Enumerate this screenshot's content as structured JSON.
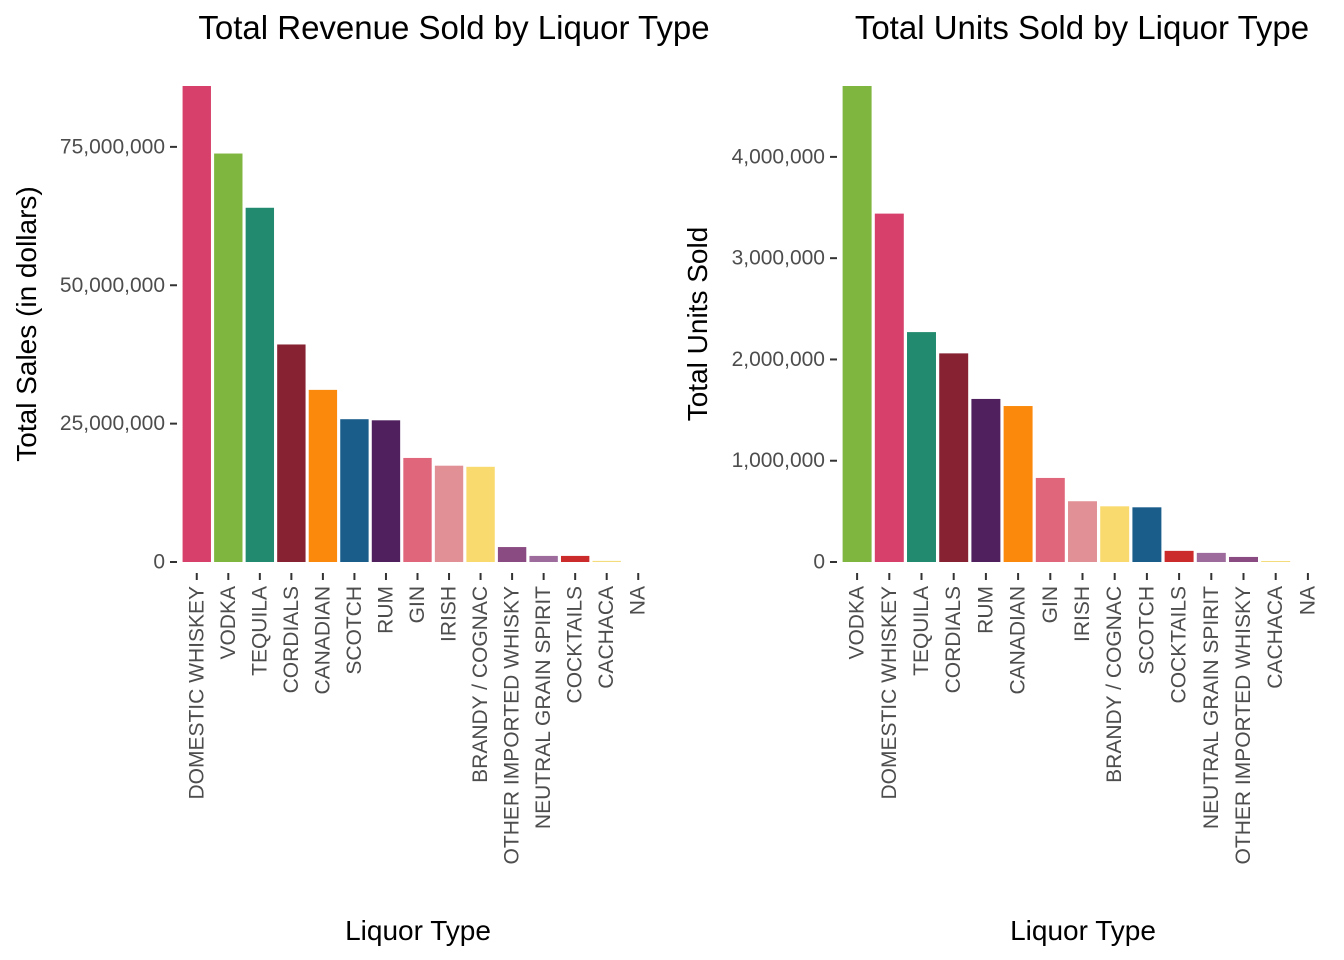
{
  "chart_data": [
    {
      "type": "bar",
      "title": "Total Revenue Sold by Liquor Type",
      "xlabel": "Liquor Type",
      "ylabel": "Total Sales (in dollars)",
      "ylim": [
        0,
        86000000
      ],
      "yticks": [
        0,
        25000000,
        50000000,
        75000000
      ],
      "ytick_labels": [
        "0",
        "25,000,000",
        "50,000,000",
        "75,000,000"
      ],
      "grid": false,
      "legend": "none",
      "categories": [
        "DOMESTIC WHISKEY",
        "VODKA",
        "TEQUILA",
        "CORDIALS",
        "CANADIAN",
        "SCOTCH",
        "RUM",
        "GIN",
        "IRISH",
        "BRANDY / COGNAC",
        "OTHER IMPORTED WHISKY",
        "NEUTRAL GRAIN SPIRIT",
        "COCKTAILS",
        "CACHACA",
        "NA"
      ],
      "values": [
        86000000,
        73800000,
        64000000,
        39300000,
        31100000,
        25800000,
        25600000,
        18800000,
        17400000,
        17200000,
        2700000,
        1100000,
        1100000,
        200000,
        0
      ],
      "colors": [
        "#D6406B",
        "#7FB640",
        "#228B6F",
        "#862232",
        "#FB8A0C",
        "#1A5D8B",
        "#4F1F5E",
        "#E0677B",
        "#E19195",
        "#F9DA6E",
        "#8A4A82",
        "#9D6B9C",
        "#CB2B2B",
        "#F4DC7C",
        "#ffffff"
      ]
    },
    {
      "type": "bar",
      "title": "Total Units Sold by Liquor Type",
      "xlabel": "Liquor Type",
      "ylabel": "Total Units Sold",
      "ylim": [
        0,
        4700000
      ],
      "yticks": [
        0,
        1000000,
        2000000,
        3000000,
        4000000
      ],
      "ytick_labels": [
        "0",
        "1,000,000",
        "2,000,000",
        "3,000,000",
        "4,000,000"
      ],
      "grid": false,
      "legend": "none",
      "categories": [
        "VODKA",
        "DOMESTIC WHISKEY",
        "TEQUILA",
        "CORDIALS",
        "RUM",
        "CANADIAN",
        "GIN",
        "IRISH",
        "BRANDY / COGNAC",
        "SCOTCH",
        "COCKTAILS",
        "NEUTRAL GRAIN SPIRIT",
        "OTHER IMPORTED WHISKY",
        "CACHACA",
        "NA"
      ],
      "values": [
        4700000,
        3440000,
        2270000,
        2060000,
        1610000,
        1540000,
        830000,
        600000,
        550000,
        540000,
        110000,
        90000,
        50000,
        10000,
        0
      ],
      "colors": [
        "#7FB640",
        "#D6406B",
        "#228B6F",
        "#862232",
        "#4F1F5E",
        "#FB8A0C",
        "#E0677B",
        "#E19195",
        "#F9DA6E",
        "#1A5D8B",
        "#CB2B2B",
        "#9D6B9C",
        "#8A4A82",
        "#F4DC7C",
        "#ffffff"
      ]
    }
  ]
}
